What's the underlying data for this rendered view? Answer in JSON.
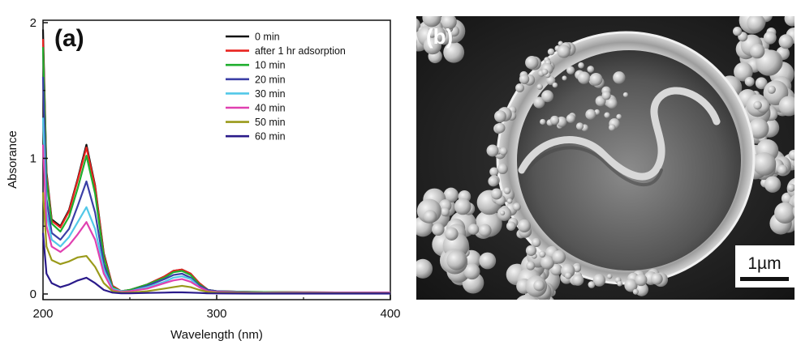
{
  "figure": {
    "panel_a_label": "(a)",
    "panel_b_label": "(b)",
    "scale_bar_label": "1µm"
  },
  "chart_data": {
    "type": "line",
    "title": "",
    "xlabel": "Wavelength (nm)",
    "ylabel": "Absorance",
    "xlim": [
      200,
      400
    ],
    "ylim": [
      0,
      2
    ],
    "xticks": [
      200,
      300,
      400
    ],
    "yticks": [
      0,
      1,
      2
    ],
    "grid": false,
    "legend_placement": "top-right",
    "x": [
      200,
      202,
      205,
      210,
      215,
      220,
      225,
      230,
      235,
      240,
      245,
      250,
      260,
      270,
      275,
      280,
      285,
      290,
      295,
      300,
      320,
      350,
      400
    ],
    "series": [
      {
        "name": "0 min",
        "color": "#111111",
        "values": [
          1.95,
          0.9,
          0.55,
          0.5,
          0.62,
          0.85,
          1.1,
          0.8,
          0.3,
          0.06,
          0.02,
          0.03,
          0.07,
          0.13,
          0.17,
          0.18,
          0.15,
          0.08,
          0.03,
          0.02,
          0.015,
          0.012,
          0.01
        ]
      },
      {
        "name": "after 1 hr adsorption",
        "color": "#e8231f",
        "values": [
          1.88,
          0.88,
          0.54,
          0.49,
          0.61,
          0.84,
          1.08,
          0.79,
          0.29,
          0.06,
          0.02,
          0.03,
          0.07,
          0.13,
          0.17,
          0.18,
          0.15,
          0.08,
          0.03,
          0.02,
          0.015,
          0.012,
          0.01
        ]
      },
      {
        "name": "10 min",
        "color": "#1fae2e",
        "values": [
          1.82,
          0.85,
          0.52,
          0.46,
          0.57,
          0.78,
          1.02,
          0.74,
          0.27,
          0.05,
          0.02,
          0.03,
          0.07,
          0.12,
          0.16,
          0.17,
          0.14,
          0.07,
          0.03,
          0.02,
          0.015,
          0.012,
          0.01
        ]
      },
      {
        "name": "20 min",
        "color": "#3b3fa6",
        "values": [
          1.6,
          0.7,
          0.45,
          0.4,
          0.48,
          0.65,
          0.83,
          0.6,
          0.22,
          0.04,
          0.02,
          0.02,
          0.06,
          0.11,
          0.14,
          0.15,
          0.12,
          0.06,
          0.03,
          0.02,
          0.012,
          0.01,
          0.01
        ]
      },
      {
        "name": "30 min",
        "color": "#52c8e8",
        "values": [
          1.3,
          0.6,
          0.4,
          0.35,
          0.42,
          0.53,
          0.64,
          0.48,
          0.18,
          0.04,
          0.02,
          0.02,
          0.05,
          0.09,
          0.12,
          0.13,
          0.11,
          0.05,
          0.02,
          0.015,
          0.012,
          0.01,
          0.01
        ]
      },
      {
        "name": "40 min",
        "color": "#e040b0",
        "values": [
          1.1,
          0.5,
          0.35,
          0.31,
          0.36,
          0.44,
          0.53,
          0.4,
          0.15,
          0.03,
          0.015,
          0.02,
          0.04,
          0.08,
          0.1,
          0.11,
          0.09,
          0.05,
          0.02,
          0.015,
          0.01,
          0.01,
          0.01
        ]
      },
      {
        "name": "50 min",
        "color": "#9a9a1a",
        "values": [
          0.75,
          0.35,
          0.25,
          0.22,
          0.24,
          0.27,
          0.28,
          0.2,
          0.08,
          0.02,
          0.01,
          0.01,
          0.02,
          0.04,
          0.05,
          0.06,
          0.05,
          0.03,
          0.015,
          0.01,
          0.008,
          0.006,
          0.005
        ]
      },
      {
        "name": "60 min",
        "color": "#2a1a8a",
        "values": [
          0.45,
          0.15,
          0.08,
          0.05,
          0.07,
          0.1,
          0.12,
          0.08,
          0.03,
          0.01,
          0.005,
          0.005,
          0.008,
          0.01,
          0.012,
          0.012,
          0.01,
          0.008,
          0.005,
          0.004,
          0.003,
          0.003,
          0.003
        ]
      }
    ]
  }
}
